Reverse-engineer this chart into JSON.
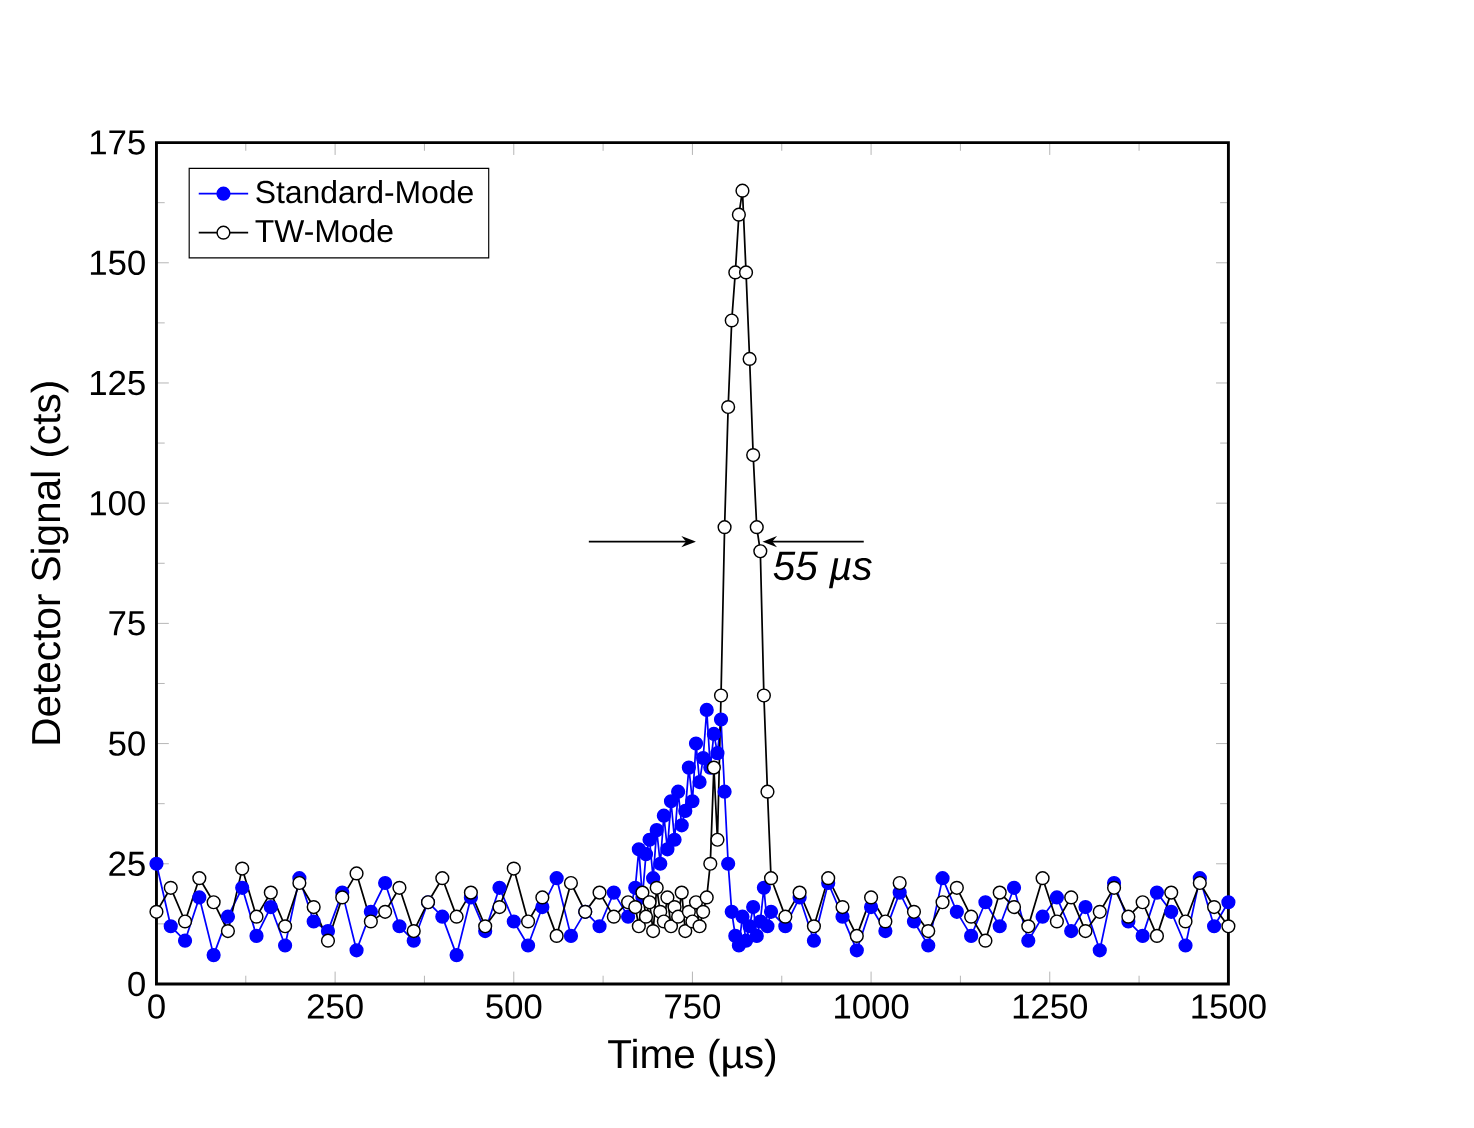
{
  "chart_data": {
    "type": "line",
    "xlabel": "Time (µs)",
    "ylabel": "Detector Signal (cts)",
    "x": [
      0,
      20,
      40,
      60,
      80,
      100,
      120,
      140,
      160,
      180,
      200,
      220,
      240,
      260,
      280,
      300,
      320,
      340,
      360,
      380,
      400,
      420,
      440,
      460,
      480,
      500,
      520,
      540,
      560,
      580,
      600,
      620,
      640,
      660,
      670,
      675,
      680,
      685,
      690,
      695,
      700,
      705,
      710,
      715,
      720,
      725,
      730,
      735,
      740,
      745,
      750,
      755,
      760,
      765,
      770,
      775,
      780,
      785,
      790,
      795,
      800,
      805,
      810,
      815,
      820,
      825,
      830,
      835,
      840,
      845,
      850,
      855,
      860,
      880,
      900,
      920,
      940,
      960,
      980,
      1000,
      1020,
      1040,
      1060,
      1080,
      1100,
      1120,
      1140,
      1160,
      1180,
      1200,
      1220,
      1240,
      1260,
      1280,
      1300,
      1320,
      1340,
      1360,
      1380,
      1400,
      1420,
      1440,
      1460,
      1480,
      1500
    ],
    "series": [
      {
        "name": "Standard-Mode",
        "color": "#0000ff",
        "marker": "circle",
        "values": [
          25,
          12,
          9,
          18,
          6,
          14,
          20,
          10,
          16,
          8,
          22,
          13,
          11,
          19,
          7,
          15,
          21,
          12,
          9,
          17,
          14,
          6,
          18,
          11,
          20,
          13,
          8,
          16,
          22,
          10,
          15,
          12,
          19,
          14,
          20,
          28,
          18,
          27,
          30,
          22,
          32,
          25,
          35,
          28,
          38,
          30,
          40,
          33,
          36,
          45,
          38,
          50,
          42,
          47,
          57,
          45,
          52,
          48,
          55,
          40,
          25,
          15,
          10,
          8,
          14,
          9,
          12,
          16,
          10,
          13,
          20,
          12,
          15,
          12,
          18,
          9,
          21,
          14,
          7,
          16,
          11,
          19,
          13,
          8,
          22,
          15,
          10,
          17,
          12,
          20,
          9,
          14,
          18,
          11,
          16,
          7,
          21,
          13,
          10,
          19,
          15,
          8,
          22,
          12,
          17
        ]
      },
      {
        "name": "TW-Mode",
        "color": "#000000",
        "marker": "circle",
        "values": [
          15,
          20,
          13,
          22,
          17,
          11,
          24,
          14,
          19,
          12,
          21,
          16,
          9,
          18,
          23,
          13,
          15,
          20,
          11,
          17,
          22,
          14,
          19,
          12,
          16,
          24,
          13,
          18,
          10,
          21,
          15,
          19,
          14,
          17,
          16,
          12,
          19,
          14,
          17,
          11,
          20,
          15,
          13,
          18,
          12,
          16,
          14,
          19,
          11,
          15,
          13,
          17,
          12,
          15,
          18,
          25,
          45,
          30,
          60,
          95,
          120,
          138,
          148,
          160,
          165,
          148,
          130,
          110,
          95,
          90,
          60,
          40,
          22,
          14,
          19,
          12,
          22,
          16,
          10,
          18,
          13,
          21,
          15,
          11,
          17,
          20,
          14,
          9,
          19,
          16,
          12,
          22,
          13,
          18,
          11,
          15,
          20,
          14,
          17,
          10,
          19,
          13,
          21,
          16,
          12
        ]
      }
    ],
    "xlim": [
      0,
      1500
    ],
    "xticks": [
      0,
      250,
      500,
      750,
      1000,
      1250,
      1500
    ],
    "ylim": [
      0,
      175
    ],
    "yticks": [
      0,
      25,
      50,
      75,
      100,
      125,
      150,
      175
    ],
    "legend": "top left",
    "grid": false,
    "annotations": [
      {
        "text": "55 µs",
        "x": 848,
        "y": 92
      }
    ]
  }
}
